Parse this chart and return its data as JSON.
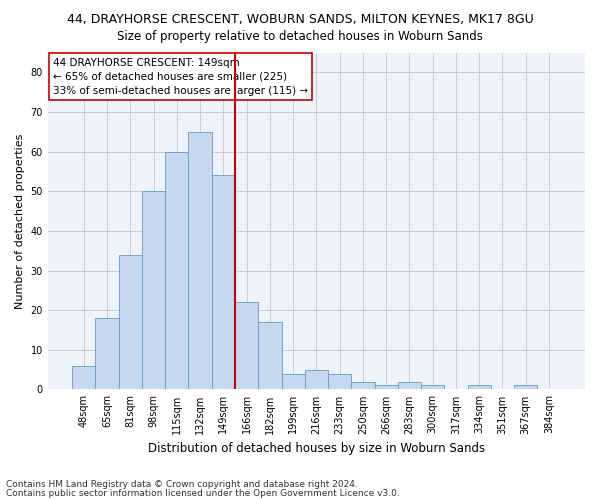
{
  "title1": "44, DRAYHORSE CRESCENT, WOBURN SANDS, MILTON KEYNES, MK17 8GU",
  "title2": "Size of property relative to detached houses in Woburn Sands",
  "xlabel": "Distribution of detached houses by size in Woburn Sands",
  "ylabel": "Number of detached properties",
  "categories": [
    "48sqm",
    "65sqm",
    "81sqm",
    "98sqm",
    "115sqm",
    "132sqm",
    "149sqm",
    "166sqm",
    "182sqm",
    "199sqm",
    "216sqm",
    "233sqm",
    "250sqm",
    "266sqm",
    "283sqm",
    "300sqm",
    "317sqm",
    "334sqm",
    "351sqm",
    "367sqm",
    "384sqm"
  ],
  "values": [
    6,
    18,
    34,
    50,
    60,
    65,
    54,
    22,
    17,
    4,
    5,
    4,
    2,
    1,
    2,
    1,
    0,
    1,
    0,
    1,
    0
  ],
  "bar_color": "#c5d8f0",
  "bar_edge_color": "#6699cc",
  "vline_color": "#cc0000",
  "annotation_text": "44 DRAYHORSE CRESCENT: 149sqm\n← 65% of detached houses are smaller (225)\n33% of semi-detached houses are larger (115) →",
  "annotation_box_color": "#ffffff",
  "annotation_box_edge_color": "#cc0000",
  "ylim": [
    0,
    85
  ],
  "yticks": [
    0,
    10,
    20,
    30,
    40,
    50,
    60,
    70,
    80
  ],
  "grid_color": "#cccccc",
  "bg_color": "#edf2fb",
  "footer1": "Contains HM Land Registry data © Crown copyright and database right 2024.",
  "footer2": "Contains public sector information licensed under the Open Government Licence v3.0.",
  "title1_fontsize": 9,
  "title2_fontsize": 8.5,
  "annotation_fontsize": 7.5,
  "footer_fontsize": 6.5,
  "ylabel_fontsize": 8,
  "xlabel_fontsize": 8.5,
  "tick_fontsize": 7
}
